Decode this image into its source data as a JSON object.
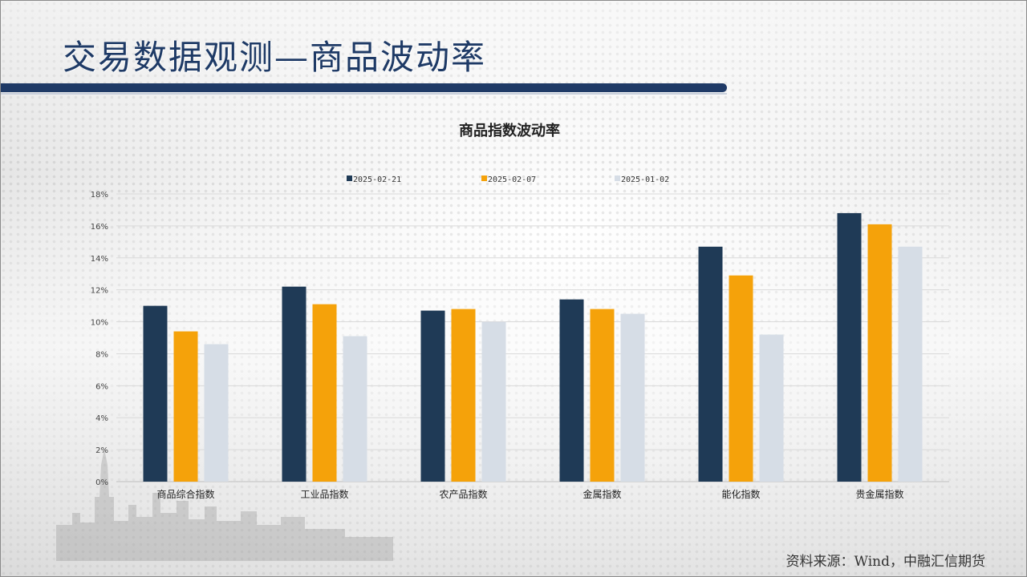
{
  "page": {
    "title": "交易数据观测—商品波动率",
    "source": "资料来源：Wind，中融汇信期货"
  },
  "colors": {
    "title": "#1e3a66",
    "bar": "#1f3a66"
  },
  "chart_data": {
    "type": "bar",
    "title": "商品指数波动率",
    "categories": [
      "商品综合指数",
      "工业品指数",
      "农产品指数",
      "金属指数",
      "能化指数",
      "贵金属指数"
    ],
    "series": [
      {
        "name": "2025-02-21",
        "color": "#1f3a56",
        "values": [
          11.0,
          12.2,
          10.7,
          11.4,
          14.7,
          16.8
        ]
      },
      {
        "name": "2025-02-07",
        "color": "#f5a20a",
        "values": [
          9.4,
          11.1,
          10.8,
          10.8,
          12.9,
          16.1
        ]
      },
      {
        "name": "2025-01-02",
        "color": "#d6dde6",
        "values": [
          8.6,
          9.1,
          10.0,
          10.5,
          9.2,
          14.7
        ]
      }
    ],
    "ylim": [
      0,
      18
    ],
    "yticks": [
      0,
      2,
      4,
      6,
      8,
      10,
      12,
      14,
      16,
      18
    ],
    "ytick_labels": [
      "0%",
      "2%",
      "4%",
      "6%",
      "8%",
      "10%",
      "12%",
      "14%",
      "16%",
      "18%"
    ],
    "grid": true,
    "legend_position": "top"
  }
}
